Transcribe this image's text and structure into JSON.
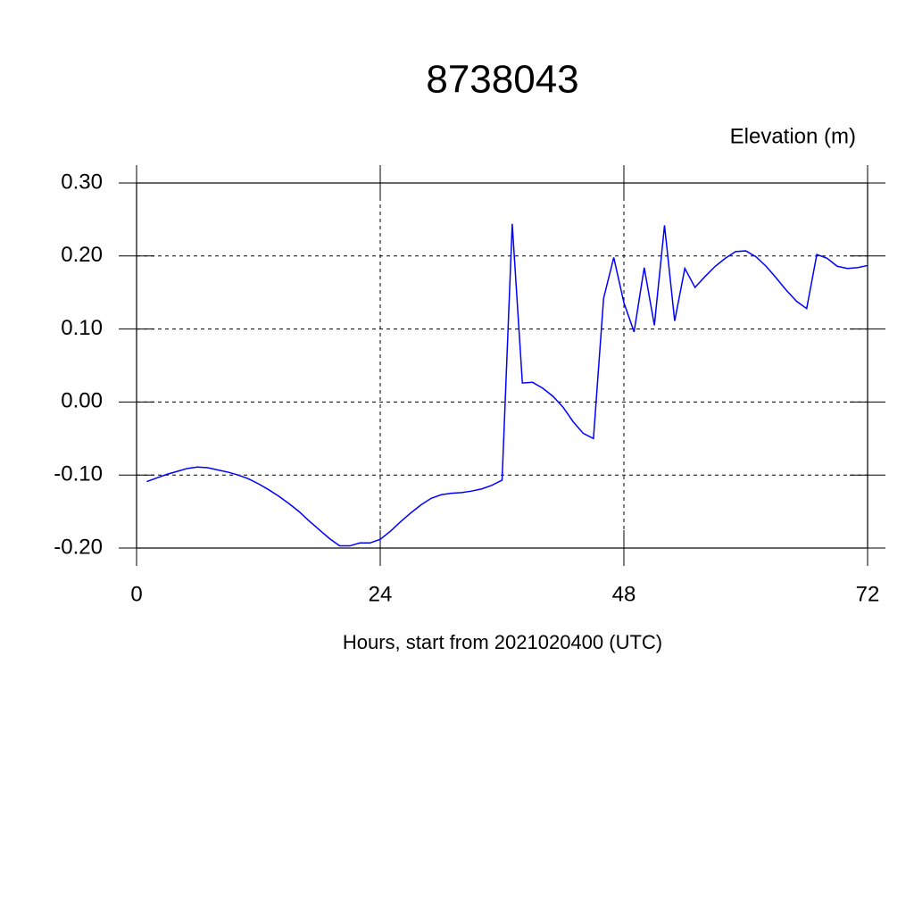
{
  "chart_data": {
    "type": "line",
    "title": "8738043",
    "subtitle": "Elevation (m)",
    "x_label": "Hours, start from 2021020400 (UTC)",
    "x": [
      1,
      2,
      3,
      4,
      5,
      6,
      7,
      8,
      9,
      10,
      11,
      12,
      13,
      14,
      15,
      16,
      17,
      18,
      19,
      20,
      21,
      22,
      23,
      24,
      25,
      26,
      27,
      28,
      29,
      30,
      31,
      32,
      33,
      34,
      35,
      36,
      37,
      38,
      39,
      40,
      41,
      42,
      43,
      44,
      45,
      46,
      47,
      48,
      49,
      50,
      51,
      52,
      53,
      54,
      55,
      56,
      57,
      58,
      59,
      60,
      61,
      62,
      63,
      64,
      65,
      66,
      67,
      68,
      69,
      70,
      71,
      72
    ],
    "series": [
      {
        "color": "#0000ff",
        "values": [
          -0.109,
          -0.104,
          -0.099,
          -0.095,
          -0.091,
          -0.089,
          -0.09,
          -0.093,
          -0.096,
          -0.1,
          -0.105,
          -0.112,
          -0.12,
          -0.129,
          -0.139,
          -0.15,
          -0.163,
          -0.175,
          -0.187,
          -0.197,
          -0.197,
          -0.193,
          -0.193,
          -0.188,
          -0.177,
          -0.164,
          -0.152,
          -0.141,
          -0.132,
          -0.127,
          -0.125,
          -0.124,
          -0.122,
          -0.119,
          -0.114,
          -0.107,
          0.244,
          0.026,
          0.027,
          0.019,
          0.008,
          -0.007,
          -0.027,
          -0.043,
          -0.05,
          0.142,
          0.198,
          0.136,
          0.096,
          0.184,
          0.105,
          0.242,
          0.111,
          0.183,
          0.157,
          0.172,
          0.186,
          0.197,
          0.206,
          0.207,
          0.199,
          0.186,
          0.17,
          0.153,
          0.138,
          0.128,
          0.202,
          0.197,
          0.186,
          0.183,
          0.184,
          0.187
        ]
      }
    ],
    "xlim": [
      0,
      72
    ],
    "xticks": [
      0,
      24,
      48,
      72
    ],
    "ylim": [
      -0.2,
      0.3
    ],
    "yticks": [
      {
        "value": -0.2,
        "label": "-0.20"
      },
      {
        "value": -0.1,
        "label": "-0.10"
      },
      {
        "value": 0,
        "label": "0.00"
      },
      {
        "value": 0.1,
        "label": "0.10"
      },
      {
        "value": 0.2,
        "label": "0.20"
      },
      {
        "value": 0.3,
        "label": "0.30"
      }
    ],
    "grid": true
  }
}
